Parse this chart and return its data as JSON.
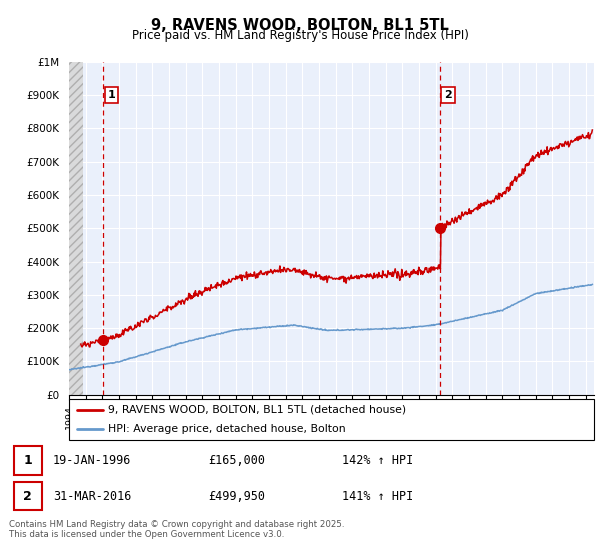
{
  "title": "9, RAVENS WOOD, BOLTON, BL1 5TL",
  "subtitle": "Price paid vs. HM Land Registry's House Price Index (HPI)",
  "ylabel_ticks": [
    "£0",
    "£100K",
    "£200K",
    "£300K",
    "£400K",
    "£500K",
    "£600K",
    "£700K",
    "£800K",
    "£900K",
    "£1M"
  ],
  "ylim": [
    0,
    1000000
  ],
  "xlim_start": 1994.0,
  "xlim_end": 2025.5,
  "sale1_x": 1996.05,
  "sale1_y": 165000,
  "sale2_x": 2016.25,
  "sale2_y": 499950,
  "legend_line1": "9, RAVENS WOOD, BOLTON, BL1 5TL (detached house)",
  "legend_line2": "HPI: Average price, detached house, Bolton",
  "ann1_num": "1",
  "ann1_text": "19-JAN-1996",
  "ann1_price": "£165,000",
  "ann1_hpi": "142% ↑ HPI",
  "ann2_num": "2",
  "ann2_text": "31-MAR-2016",
  "ann2_price": "£499,950",
  "ann2_hpi": "141% ↑ HPI",
  "footer": "Contains HM Land Registry data © Crown copyright and database right 2025.\nThis data is licensed under the Open Government Licence v3.0.",
  "red_color": "#cc0000",
  "blue_color": "#6699cc",
  "bg_plot": "#eaf0fb",
  "grid_color": "#ffffff",
  "hatch_bg": "#d8d8d8"
}
